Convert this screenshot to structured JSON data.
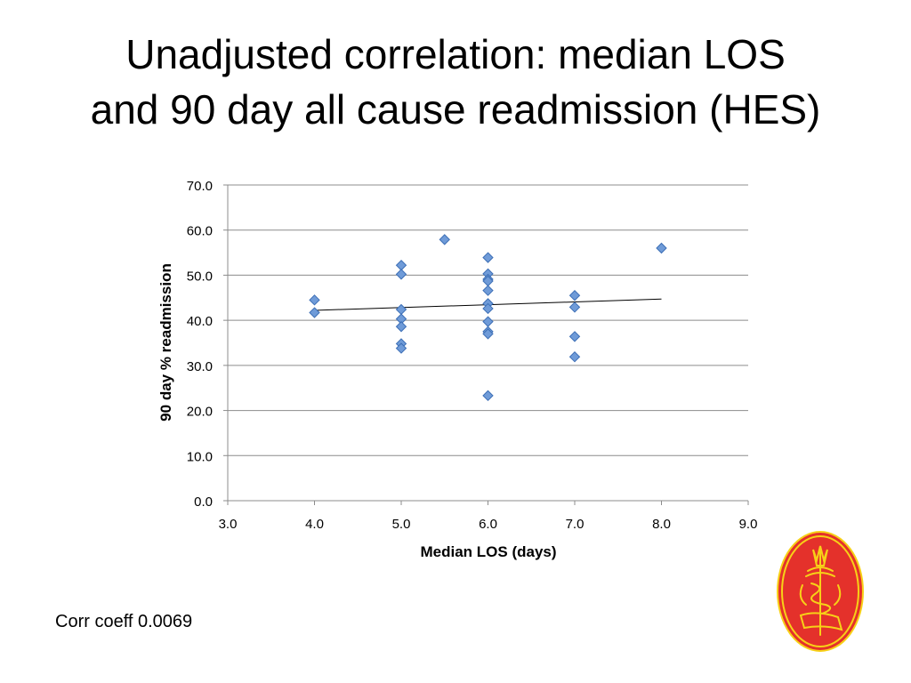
{
  "slide": {
    "title_line1": "Unadjusted correlation: median LOS",
    "title_line2": "and 90 day all cause readmission (HES)",
    "corr_text": "Corr coeff  0.0069"
  },
  "colors": {
    "marker_fill": "#6f9bd8",
    "marker_stroke": "#3d6fb6",
    "gridline": "#8c8c8c",
    "trendline": "#000000",
    "logo_red": "#e4312b",
    "logo_yellow": "#f7d117"
  },
  "chart_data": {
    "type": "scatter",
    "title": "",
    "xlabel": "Median LOS (days)",
    "ylabel": "90 day % readmission",
    "xlim": [
      3.0,
      9.0
    ],
    "ylim": [
      0.0,
      70.0
    ],
    "xticks": [
      "3.0",
      "4.0",
      "5.0",
      "6.0",
      "7.0",
      "8.0",
      "9.0"
    ],
    "yticks": [
      "0.0",
      "10.0",
      "20.0",
      "30.0",
      "40.0",
      "50.0",
      "60.0",
      "70.0"
    ],
    "grid": "horizontal",
    "legend": "none",
    "points": [
      {
        "x": 4.0,
        "y": 44.5
      },
      {
        "x": 4.0,
        "y": 41.7
      },
      {
        "x": 5.0,
        "y": 52.2
      },
      {
        "x": 5.0,
        "y": 50.2
      },
      {
        "x": 5.0,
        "y": 42.4
      },
      {
        "x": 5.0,
        "y": 40.3
      },
      {
        "x": 5.0,
        "y": 38.6
      },
      {
        "x": 5.0,
        "y": 34.8
      },
      {
        "x": 5.0,
        "y": 33.8
      },
      {
        "x": 5.5,
        "y": 57.9
      },
      {
        "x": 6.0,
        "y": 53.9
      },
      {
        "x": 6.0,
        "y": 50.3
      },
      {
        "x": 6.0,
        "y": 49.1
      },
      {
        "x": 6.0,
        "y": 48.7
      },
      {
        "x": 6.0,
        "y": 46.6
      },
      {
        "x": 6.0,
        "y": 43.7
      },
      {
        "x": 6.0,
        "y": 42.6
      },
      {
        "x": 6.0,
        "y": 39.7
      },
      {
        "x": 6.0,
        "y": 37.5
      },
      {
        "x": 6.0,
        "y": 37.0
      },
      {
        "x": 6.0,
        "y": 23.3
      },
      {
        "x": 7.0,
        "y": 45.5
      },
      {
        "x": 7.0,
        "y": 42.9
      },
      {
        "x": 7.0,
        "y": 36.4
      },
      {
        "x": 7.0,
        "y": 31.9
      },
      {
        "x": 8.0,
        "y": 56.0
      }
    ],
    "trendline": {
      "x": [
        4.0,
        8.0
      ],
      "y": [
        42.2,
        44.7
      ]
    }
  }
}
